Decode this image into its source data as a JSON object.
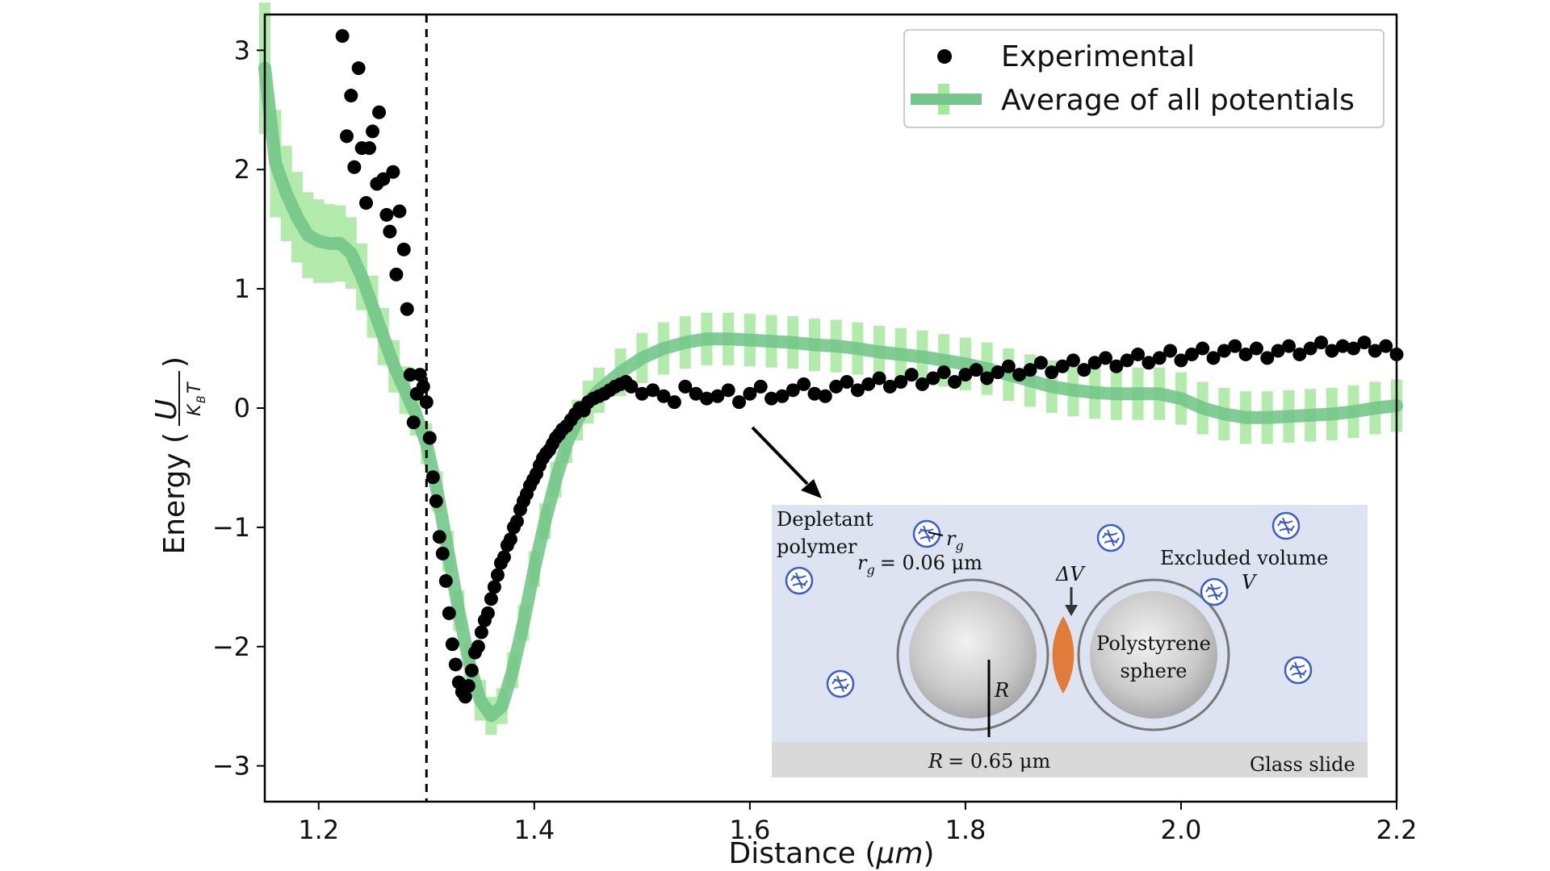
{
  "colors": {
    "experimental": "#000000",
    "average_line": "#74c68a",
    "band": "#a6e89d",
    "inset_bg": "#dde3f0",
    "glass_slide": "#d9d9d9",
    "overlap": "#e07b39",
    "polymer": "#3a5fcd"
  },
  "chart_data": {
    "type": "scatter",
    "xlabel_main": "Distance (",
    "xlabel_unit": "μm",
    "xlabel_end": ")",
    "ylabel_main": "Energy (",
    "ylabel_num": "U",
    "ylabel_den": "K",
    "ylabel_sub": "B",
    "ylabel_den2": "T",
    "ylabel_end": ")",
    "xlim": [
      1.15,
      2.2
    ],
    "ylim": [
      -3.3,
      3.3
    ],
    "xticks": [
      1.2,
      1.4,
      1.6,
      1.8,
      2.0,
      2.2
    ],
    "xtick_labels": [
      "1.2",
      "1.4",
      "1.6",
      "1.8",
      "2.0",
      "2.2"
    ],
    "yticks": [
      3,
      2,
      1,
      0,
      -1,
      -2,
      -3
    ],
    "ytick_labels": [
      "3",
      "2",
      "1",
      "0",
      "−1",
      "−2",
      "−3"
    ],
    "vline_x": 1.3,
    "legend_position": "top-right",
    "series": [
      {
        "name": "Experimental",
        "kind": "scatter",
        "x": [
          1.222,
          1.226,
          1.23,
          1.233,
          1.237,
          1.24,
          1.244,
          1.247,
          1.25,
          1.254,
          1.256,
          1.26,
          1.263,
          1.266,
          1.269,
          1.272,
          1.275,
          1.279,
          1.282,
          1.285,
          1.288,
          1.291,
          1.294,
          1.297,
          1.3,
          1.303,
          1.306,
          1.309,
          1.312,
          1.315,
          1.318,
          1.321,
          1.324,
          1.327,
          1.33,
          1.333,
          1.336,
          1.339,
          1.342,
          1.345,
          1.348,
          1.351,
          1.354,
          1.357,
          1.36,
          1.363,
          1.366,
          1.369,
          1.372,
          1.375,
          1.378,
          1.381,
          1.384,
          1.387,
          1.39,
          1.393,
          1.396,
          1.399,
          1.402,
          1.405,
          1.408,
          1.411,
          1.414,
          1.417,
          1.42,
          1.423,
          1.426,
          1.43,
          1.434,
          1.438,
          1.442,
          1.446,
          1.45,
          1.455,
          1.46,
          1.465,
          1.47,
          1.475,
          1.48,
          1.485,
          1.49,
          1.5,
          1.51,
          1.52,
          1.53,
          1.54,
          1.55,
          1.56,
          1.57,
          1.58,
          1.59,
          1.6,
          1.61,
          1.62,
          1.63,
          1.64,
          1.65,
          1.66,
          1.67,
          1.68,
          1.69,
          1.7,
          1.71,
          1.72,
          1.73,
          1.74,
          1.75,
          1.76,
          1.77,
          1.78,
          1.79,
          1.8,
          1.81,
          1.82,
          1.83,
          1.84,
          1.85,
          1.86,
          1.87,
          1.88,
          1.89,
          1.9,
          1.91,
          1.92,
          1.93,
          1.94,
          1.95,
          1.96,
          1.97,
          1.98,
          1.99,
          2.0,
          2.01,
          2.02,
          2.03,
          2.04,
          2.05,
          2.06,
          2.07,
          2.08,
          2.09,
          2.1,
          2.11,
          2.12,
          2.13,
          2.14,
          2.15,
          2.16,
          2.17,
          2.18,
          2.19,
          2.2
        ],
        "y": [
          3.12,
          2.28,
          2.62,
          2.02,
          2.85,
          2.18,
          1.72,
          2.18,
          2.32,
          1.88,
          2.48,
          1.92,
          1.62,
          1.48,
          1.98,
          1.12,
          1.65,
          1.33,
          0.83,
          0.28,
          -0.12,
          0.12,
          0.28,
          0.18,
          0.05,
          -0.25,
          -0.58,
          -0.78,
          -1.08,
          -1.22,
          -1.45,
          -1.72,
          -1.98,
          -2.15,
          -2.3,
          -2.38,
          -2.42,
          -2.33,
          -2.2,
          -2.05,
          -2.0,
          -1.88,
          -1.78,
          -1.72,
          -1.6,
          -1.5,
          -1.4,
          -1.3,
          -1.25,
          -1.15,
          -1.1,
          -1.0,
          -0.95,
          -0.85,
          -0.78,
          -0.72,
          -0.65,
          -0.6,
          -0.55,
          -0.48,
          -0.42,
          -0.38,
          -0.35,
          -0.3,
          -0.25,
          -0.22,
          -0.18,
          -0.15,
          -0.1,
          -0.05,
          0.0,
          -0.02,
          0.05,
          0.08,
          0.1,
          0.12,
          0.15,
          0.18,
          0.2,
          0.22,
          0.18,
          0.12,
          0.15,
          0.1,
          0.05,
          0.18,
          0.12,
          0.08,
          0.1,
          0.15,
          0.05,
          0.12,
          0.18,
          0.08,
          0.1,
          0.15,
          0.2,
          0.12,
          0.1,
          0.18,
          0.22,
          0.15,
          0.2,
          0.25,
          0.18,
          0.22,
          0.28,
          0.2,
          0.25,
          0.3,
          0.22,
          0.28,
          0.32,
          0.25,
          0.3,
          0.35,
          0.28,
          0.32,
          0.38,
          0.3,
          0.35,
          0.4,
          0.32,
          0.38,
          0.42,
          0.35,
          0.4,
          0.45,
          0.38,
          0.42,
          0.48,
          0.4,
          0.45,
          0.5,
          0.42,
          0.48,
          0.52,
          0.45,
          0.5,
          0.42,
          0.48,
          0.52,
          0.45,
          0.5,
          0.55,
          0.48,
          0.52,
          0.5,
          0.55,
          0.48,
          0.52,
          0.45
        ]
      },
      {
        "name": "Average of all potentials",
        "kind": "line",
        "x": [
          1.15,
          1.16,
          1.17,
          1.18,
          1.19,
          1.2,
          1.21,
          1.22,
          1.23,
          1.24,
          1.25,
          1.26,
          1.27,
          1.28,
          1.29,
          1.3,
          1.31,
          1.32,
          1.33,
          1.34,
          1.35,
          1.36,
          1.37,
          1.38,
          1.39,
          1.4,
          1.41,
          1.42,
          1.43,
          1.44,
          1.45,
          1.46,
          1.48,
          1.5,
          1.52,
          1.54,
          1.56,
          1.58,
          1.6,
          1.62,
          1.64,
          1.66,
          1.68,
          1.7,
          1.72,
          1.74,
          1.76,
          1.78,
          1.8,
          1.82,
          1.84,
          1.86,
          1.88,
          1.9,
          1.92,
          1.94,
          1.96,
          1.98,
          2.0,
          2.02,
          2.04,
          2.06,
          2.08,
          2.1,
          2.12,
          2.14,
          2.16,
          2.18,
          2.2
        ],
        "y": [
          2.85,
          2.05,
          1.8,
          1.6,
          1.45,
          1.4,
          1.38,
          1.38,
          1.3,
          1.1,
          0.85,
          0.6,
          0.35,
          0.15,
          -0.05,
          -0.3,
          -0.7,
          -1.2,
          -1.7,
          -2.15,
          -2.45,
          -2.58,
          -2.5,
          -2.2,
          -1.8,
          -1.35,
          -0.95,
          -0.6,
          -0.3,
          -0.1,
          0.05,
          0.15,
          0.3,
          0.42,
          0.5,
          0.55,
          0.58,
          0.58,
          0.57,
          0.56,
          0.55,
          0.53,
          0.52,
          0.5,
          0.47,
          0.45,
          0.43,
          0.4,
          0.37,
          0.33,
          0.28,
          0.23,
          0.18,
          0.15,
          0.13,
          0.12,
          0.12,
          0.12,
          0.08,
          0.0,
          -0.05,
          -0.08,
          -0.08,
          -0.07,
          -0.06,
          -0.05,
          -0.03,
          0.0,
          0.02
        ],
        "error": [
          0.55,
          0.45,
          0.4,
          0.38,
          0.36,
          0.35,
          0.33,
          0.32,
          0.3,
          0.28,
          0.26,
          0.24,
          0.22,
          0.2,
          0.18,
          0.17,
          0.17,
          0.17,
          0.17,
          0.17,
          0.17,
          0.16,
          0.15,
          0.15,
          0.15,
          0.15,
          0.15,
          0.15,
          0.16,
          0.17,
          0.18,
          0.19,
          0.2,
          0.21,
          0.22,
          0.22,
          0.22,
          0.22,
          0.22,
          0.22,
          0.22,
          0.22,
          0.22,
          0.22,
          0.22,
          0.22,
          0.22,
          0.22,
          0.22,
          0.22,
          0.22,
          0.22,
          0.22,
          0.22,
          0.22,
          0.22,
          0.22,
          0.22,
          0.22,
          0.22,
          0.22,
          0.22,
          0.22,
          0.22,
          0.22,
          0.22,
          0.22,
          0.22,
          0.22
        ]
      }
    ],
    "inset": {
      "depletant_label_1": "Depletant",
      "depletant_label_2": "polymer",
      "rg_label": "r",
      "rg_sub": "g",
      "rg_value": "= 0.06 μm",
      "delta_v": "ΔV",
      "excluded_volume": "Excluded volume",
      "v_label": "V",
      "sphere_label_1": "Polystyrene",
      "sphere_label_2": "sphere",
      "r_label": "R",
      "r_value": "= 0.65 μm",
      "glass_slide": "Glass slide"
    }
  }
}
